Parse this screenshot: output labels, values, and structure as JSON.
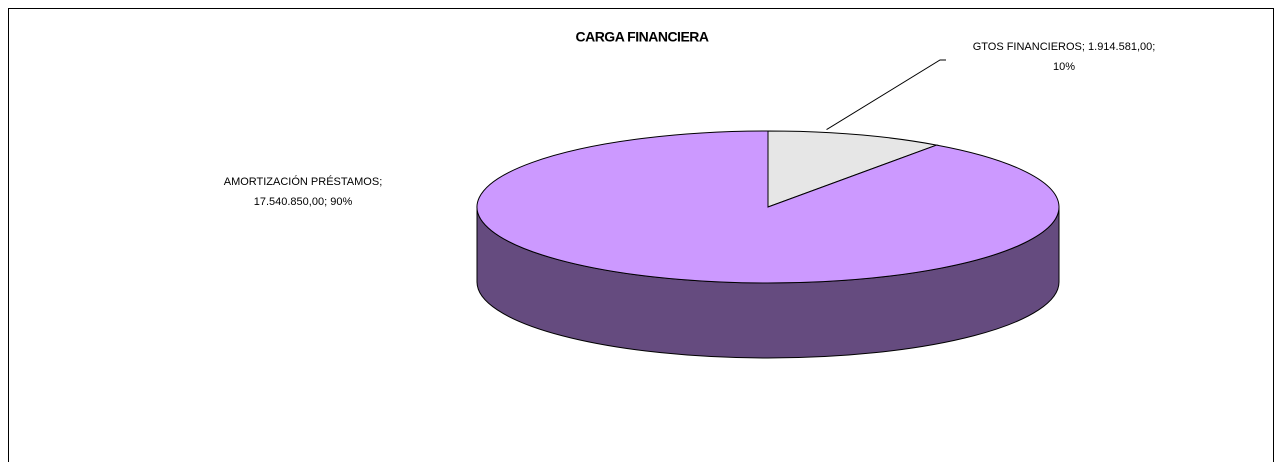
{
  "chart_data": {
    "type": "pie3d",
    "title": "CARGA FINANCIERA",
    "categories": [
      "GTOS FINANCIEROS",
      "AMORTIZACIÓN PRÉSTAMOS"
    ],
    "values": [
      1914581,
      17540850
    ],
    "value_labels": [
      "1.914.581,00",
      "17.540.850,00"
    ],
    "percents": [
      10,
      90
    ],
    "percent_labels": [
      "10%",
      "90%"
    ],
    "separator": "; ",
    "colors": [
      "#e6e6e6",
      "#cc99ff"
    ],
    "side_colors": [
      "#9a9a9a",
      "#654b7f"
    ]
  }
}
